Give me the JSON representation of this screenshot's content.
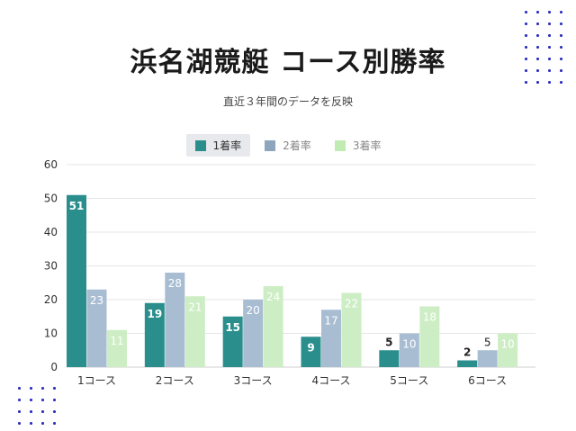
{
  "title": "浜名湖競艇 コース別勝率",
  "subtitle": "直近３年間のデータを反映",
  "colors": {
    "s1": "#2a8f8c",
    "s2": "#a9bdd2",
    "s3": "#cdeec4",
    "label_light": "#ffffff",
    "label_dark": "#222222"
  },
  "chart_data": {
    "type": "bar",
    "categories": [
      "1コース",
      "2コース",
      "3コース",
      "4コース",
      "5コース",
      "6コース"
    ],
    "series": [
      {
        "name": "1着率",
        "values": [
          51,
          19,
          15,
          9,
          5,
          2
        ]
      },
      {
        "name": "2着率",
        "values": [
          23,
          28,
          20,
          17,
          10,
          5
        ]
      },
      {
        "name": "3着率",
        "values": [
          11,
          21,
          24,
          22,
          18,
          10
        ]
      }
    ],
    "ylim": [
      0,
      60
    ],
    "yticks": [
      0,
      10,
      20,
      30,
      40,
      50,
      60
    ],
    "grid": true,
    "legend": "top-center"
  }
}
